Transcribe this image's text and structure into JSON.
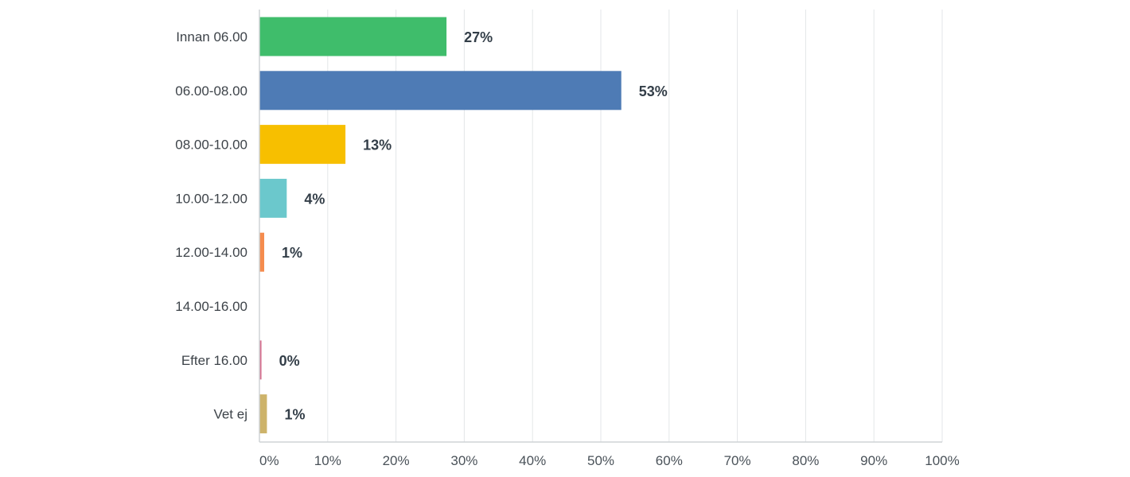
{
  "chart_data": {
    "type": "bar",
    "orientation": "horizontal",
    "categories": [
      "Innan 06.00",
      "06.00-08.00",
      "08.00-10.00",
      "10.00-12.00",
      "12.00-14.00",
      "14.00-16.00",
      "Efter 16.00",
      "Vet ej"
    ],
    "values": [
      27.4,
      53.0,
      12.6,
      4.0,
      0.7,
      0.0,
      0.3,
      1.1
    ],
    "value_labels": [
      "27%",
      "53%",
      "13%",
      "4%",
      "1%",
      "",
      "0%",
      "1%"
    ],
    "colors": [
      "#3fbd6b",
      "#4e7bb5",
      "#f7bf00",
      "#6bc8cc",
      "#f58c4e",
      "#cccccc",
      "#d66f8f",
      "#cdb36a"
    ],
    "xlim": [
      0,
      100
    ],
    "xticks": [
      0,
      10,
      20,
      30,
      40,
      50,
      60,
      70,
      80,
      90,
      100
    ],
    "xtick_labels": [
      "0%",
      "10%",
      "20%",
      "30%",
      "40%",
      "50%",
      "60%",
      "70%",
      "80%",
      "90%",
      "100%"
    ],
    "grid": true,
    "title": "",
    "xlabel": "",
    "ylabel": ""
  }
}
